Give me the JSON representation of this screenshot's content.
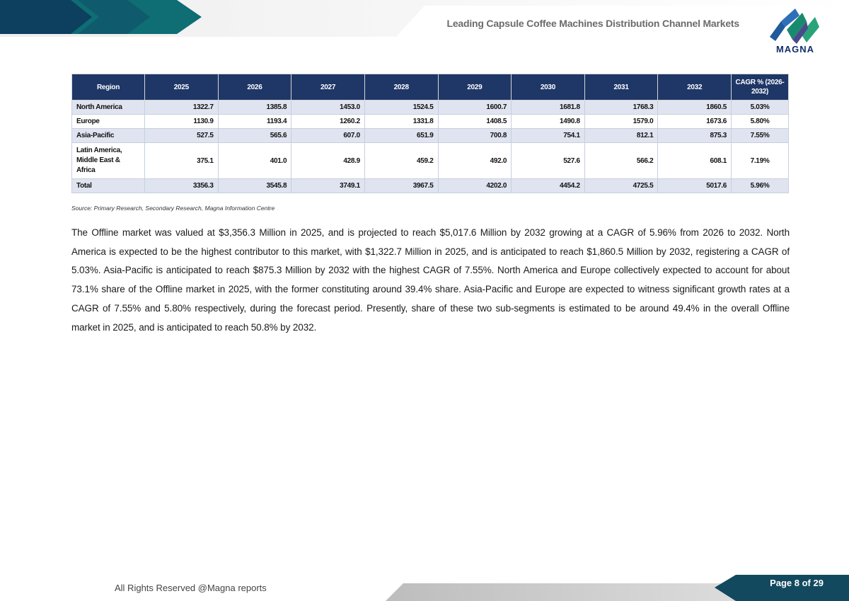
{
  "header": {
    "title": "Leading Capsule Coffee Machines Distribution Channel Markets",
    "logo_text": "MAGNA"
  },
  "table": {
    "headers": [
      "Region",
      "2025",
      "2026",
      "2027",
      "2028",
      "2029",
      "2030",
      "2031",
      "2032",
      "CAGR % (2026-2032)"
    ],
    "rows": [
      [
        "North America",
        "1322.7",
        "1385.8",
        "1453.0",
        "1524.5",
        "1600.7",
        "1681.8",
        "1768.3",
        "1860.5",
        "5.03%"
      ],
      [
        "Europe",
        "1130.9",
        "1193.4",
        "1260.2",
        "1331.8",
        "1408.5",
        "1490.8",
        "1579.0",
        "1673.6",
        "5.80%"
      ],
      [
        "Asia-Pacific",
        "527.5",
        "565.6",
        "607.0",
        "651.9",
        "700.8",
        "754.1",
        "812.1",
        "875.3",
        "7.55%"
      ],
      [
        "Latin America, Middle East & Africa",
        "375.1",
        "401.0",
        "428.9",
        "459.2",
        "492.0",
        "527.6",
        "566.2",
        "608.1",
        "7.19%"
      ],
      [
        "Total",
        "3356.3",
        "3545.8",
        "3749.1",
        "3967.5",
        "4202.0",
        "4454.2",
        "4725.5",
        "5017.6",
        "5.96%"
      ]
    ]
  },
  "source": "Source: Primary Research, Secondary Research, Magna Information Centre",
  "paragraph": "The Offline market was valued at $3,356.3 Million in 2025, and is projected to reach $5,017.6 Million by 2032 growing at a CAGR of 5.96% from 2026 to 2032. North America is expected to be the highest contributor to this market, with $1,322.7 Million in 2025, and is anticipated to reach $1,860.5 Million by 2032, registering a CAGR of 5.03%. Asia-Pacific is anticipated to reach $875.3 Million by 2032 with the highest CAGR of 7.55%. North America and Europe collectively expected to account for about 73.1% share of the Offline market in 2025, with the former constituting around 39.4% share. Asia-Pacific and Europe are expected to witness significant growth rates at a CAGR of 7.55% and 5.80% respectively, during the forecast period. Presently, share of these two sub-segments is estimated to be around 49.4% in the overall Offline market in 2025, and is anticipated to reach 50.8% by 2032.",
  "footer": {
    "rights": "All Rights Reserved @Magna reports",
    "page": "Page 8 of 29"
  }
}
